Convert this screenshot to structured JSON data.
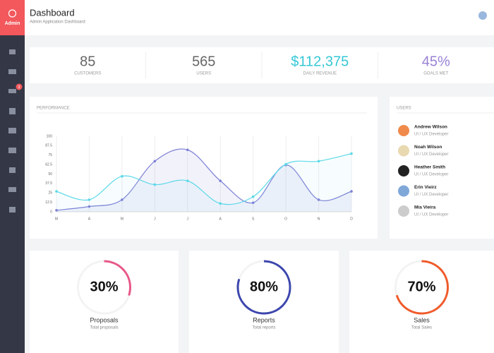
{
  "sidebar": {
    "brand": "Admin",
    "badge": "3"
  },
  "header": {
    "title": "Dashboard",
    "subtitle": "Admin Application Dashboard"
  },
  "stats": [
    {
      "value": "85",
      "label": "CUSTOMERS",
      "color": "#666666"
    },
    {
      "value": "565",
      "label": "USERS",
      "color": "#666666"
    },
    {
      "value": "$112,375",
      "label": "DAILY REVENUE",
      "color": "#35c8d6"
    },
    {
      "value": "45%",
      "label": "GOALS MET",
      "color": "#9a82d6"
    }
  ],
  "chart_data": {
    "type": "line",
    "title": "PERFORMANCE",
    "categories": [
      "M",
      "A",
      "M",
      "J",
      "J",
      "A",
      "S",
      "O",
      "N",
      "D"
    ],
    "series": [
      {
        "color": "#7d80d6",
        "values": [
          2,
          7,
          16,
          67,
          82,
          41,
          12,
          62,
          16,
          27
        ]
      },
      {
        "color": "#5cd9e8",
        "values": [
          27,
          16,
          47,
          36,
          41,
          11,
          20,
          63,
          67,
          77
        ]
      }
    ],
    "ylim": [
      0,
      100
    ],
    "yticks": [
      0,
      12.5,
      25,
      37.5,
      50,
      62.5,
      75,
      87.5,
      100
    ],
    "grid": "vertical"
  },
  "users": {
    "title": "USERS",
    "items": [
      {
        "name": "Andrew Wilson",
        "role": "UI / UX Developer",
        "color": "#f08a4b"
      },
      {
        "name": "Noah Wilson",
        "role": "UI / UX Developer",
        "color": "#e8d9b0"
      },
      {
        "name": "Heather Smith",
        "role": "UI / UX Developer",
        "color": "#222222"
      },
      {
        "name": "Erin Vieirz",
        "role": "UI / UX Developer",
        "color": "#7fa7d8"
      },
      {
        "name": "Mia Vieira",
        "role": "UI / UX Developer",
        "color": "#cccccc"
      }
    ]
  },
  "gauges": [
    {
      "value": 30,
      "label": "30%",
      "title": "Proposals",
      "subtitle": "Total proposals",
      "color": "#e8588a"
    },
    {
      "value": 80,
      "label": "80%",
      "title": "Reports",
      "subtitle": "Total reports",
      "color": "#3c46ad"
    },
    {
      "value": 70,
      "label": "70%",
      "title": "Sales",
      "subtitle": "Total Sales",
      "color": "#f05a2a"
    }
  ]
}
